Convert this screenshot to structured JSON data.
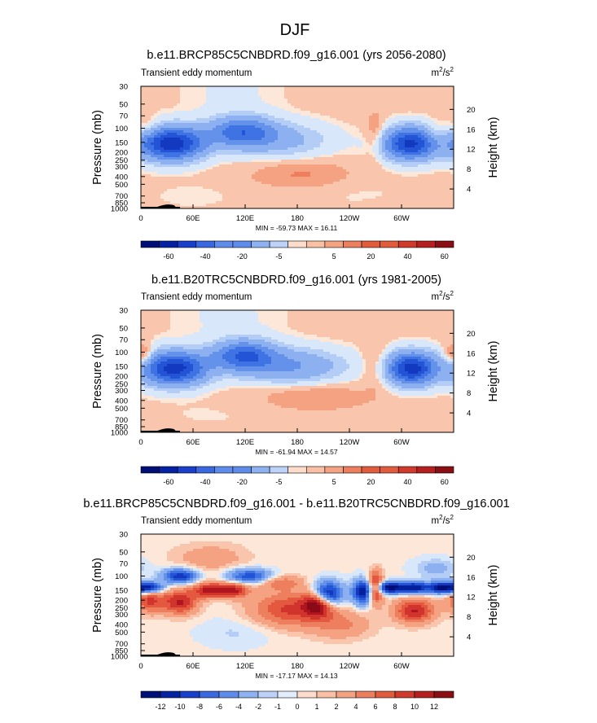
{
  "page_title": "DJF",
  "colors": {
    "positive": [
      "#fde7d9",
      "#f9c6ad",
      "#f4a282",
      "#ee7f5e",
      "#e3583f",
      "#d0342c",
      "#b0141f",
      "#8a0a18",
      "#650013"
    ],
    "negative": [
      "#d9e7fb",
      "#b4cdf6",
      "#8cb0f0",
      "#6491ea",
      "#3f72e3",
      "#2454d6",
      "#1239c0",
      "#05209c",
      "#000f78",
      "#000a5c"
    ],
    "bar_positive": [
      "#fddccb",
      "#f9c0a5",
      "#f4a282",
      "#ec7f5e",
      "#e15b3d",
      "#cf3a2c",
      "#b51f1f",
      "#8b0e14"
    ],
    "bar_negative": [
      "#000f78",
      "#0522a3",
      "#1a3fcb",
      "#3a68e0",
      "#5f8ceb",
      "#8eb1f2",
      "#bdd2f8",
      "#e1ecfc"
    ],
    "topography": "#000000"
  },
  "chart_data": [
    {
      "type": "heatmap",
      "title": "b.e11.BRCP85C5CNBDRD.f09_g16.001 (yrs 2056-2080)",
      "subtitle_left": "Transient eddy momentum",
      "units": {
        "base": "m",
        "sup1": "2",
        "mid": "/s",
        "sup2": "2"
      },
      "ylabel": "Pressure (mb)",
      "ylabel_right": "Height (km)",
      "pressure_ticks": [
        "30",
        "50",
        "70",
        "100",
        "150",
        "200",
        "250",
        "300",
        "400",
        "500",
        "700",
        "850",
        "1000"
      ],
      "height_ticks": [
        "20",
        "16",
        "12",
        "8",
        "4"
      ],
      "height_values_km": [
        20,
        16,
        12,
        8,
        4
      ],
      "lon_ticks": [
        "0",
        "60E",
        "120E",
        "180",
        "120W",
        "60W"
      ],
      "xlim_deg": [
        0,
        360
      ],
      "stats": "MIN = -59.73  MAX =  16.11",
      "colorbar_labels": [
        "-60",
        "-40",
        "-20",
        "-5",
        "5",
        "20",
        "40",
        "60"
      ],
      "colorbar_levels": [
        -70,
        -60,
        -50,
        -40,
        -30,
        -20,
        -10,
        -5,
        -1,
        1,
        5,
        10,
        20,
        30,
        40,
        50,
        60,
        70
      ],
      "contour_levels": [
        -60,
        -50,
        -40,
        -30,
        -20,
        -10,
        -5,
        -1,
        1,
        5,
        10,
        20,
        30,
        40,
        50,
        60
      ],
      "background_value": 2,
      "features": [
        {
          "lon": 35,
          "p": 155,
          "amp": -60,
          "wlon": 26,
          "wp": 0.33
        },
        {
          "lon": 115,
          "p": 110,
          "amp": -35,
          "wlon": 26,
          "wp": 0.3
        },
        {
          "lon": 160,
          "p": 140,
          "amp": -15,
          "wlon": 40,
          "wp": 0.35
        },
        {
          "lon": 310,
          "p": 155,
          "amp": -55,
          "wlon": 22,
          "wp": 0.32
        },
        {
          "lon": 8,
          "p": 100,
          "amp": 8,
          "wlon": 10,
          "wp": 0.2
        },
        {
          "lon": 270,
          "p": 120,
          "amp": 9,
          "wlon": 8,
          "wp": 0.45
        },
        {
          "lon": 185,
          "p": 380,
          "amp": 9,
          "wlon": 40,
          "wp": 0.28
        },
        {
          "lon": 105,
          "p": 35,
          "amp": -2.5,
          "wlon": 45,
          "wp": 0.6
        },
        {
          "lon": 60,
          "p": 700,
          "amp": -1.5,
          "wlon": 40,
          "wp": 0.3
        },
        {
          "lon": 240,
          "p": 600,
          "amp": -1.5,
          "wlon": 50,
          "wp": 0.35
        },
        {
          "lon": 340,
          "p": 120,
          "amp": 8,
          "wlon": 10,
          "wp": 0.25
        }
      ]
    },
    {
      "type": "heatmap",
      "title": "b.e11.B20TRC5CNBDRD.f09_g16.001 (yrs 1981-2005)",
      "subtitle_left": "Transient eddy momentum",
      "units": {
        "base": "m",
        "sup1": "2",
        "mid": "/s",
        "sup2": "2"
      },
      "ylabel": "Pressure (mb)",
      "ylabel_right": "Height (km)",
      "pressure_ticks": [
        "30",
        "50",
        "70",
        "100",
        "150",
        "200",
        "250",
        "300",
        "400",
        "500",
        "700",
        "850",
        "1000"
      ],
      "height_ticks": [
        "20",
        "16",
        "12",
        "8",
        "4"
      ],
      "height_values_km": [
        20,
        16,
        12,
        8,
        4
      ],
      "lon_ticks": [
        "0",
        "60E",
        "120E",
        "180",
        "120W",
        "60W"
      ],
      "xlim_deg": [
        0,
        360
      ],
      "stats": "MIN = -61.94  MAX =  14.57",
      "colorbar_labels": [
        "-60",
        "-40",
        "-20",
        "-5",
        "5",
        "20",
        "40",
        "60"
      ],
      "colorbar_levels": [
        -70,
        -60,
        -50,
        -40,
        -30,
        -20,
        -10,
        -5,
        -1,
        1,
        5,
        10,
        20,
        30,
        40,
        50,
        60,
        70
      ],
      "contour_levels": [
        -60,
        -50,
        -40,
        -30,
        -20,
        -10,
        -5,
        -1,
        1,
        5,
        10,
        20,
        30,
        40,
        50,
        60
      ],
      "background_value": 2,
      "features": [
        {
          "lon": 38,
          "p": 160,
          "amp": -58,
          "wlon": 26,
          "wp": 0.33
        },
        {
          "lon": 118,
          "p": 110,
          "amp": -40,
          "wlon": 25,
          "wp": 0.3
        },
        {
          "lon": 175,
          "p": 150,
          "amp": -22,
          "wlon": 42,
          "wp": 0.35
        },
        {
          "lon": 312,
          "p": 160,
          "amp": -58,
          "wlon": 20,
          "wp": 0.32
        },
        {
          "lon": 5,
          "p": 110,
          "amp": 9,
          "wlon": 8,
          "wp": 0.22
        },
        {
          "lon": 358,
          "p": 110,
          "amp": 9,
          "wlon": 8,
          "wp": 0.22
        },
        {
          "lon": 270,
          "p": 150,
          "amp": 7,
          "wlon": 10,
          "wp": 0.45
        },
        {
          "lon": 200,
          "p": 360,
          "amp": 8,
          "wlon": 45,
          "wp": 0.28
        },
        {
          "lon": 100,
          "p": 35,
          "amp": -2.5,
          "wlon": 50,
          "wp": 0.6
        },
        {
          "lon": 80,
          "p": 600,
          "amp": -1.2,
          "wlon": 50,
          "wp": 0.3
        }
      ]
    },
    {
      "type": "heatmap",
      "title": "b.e11.BRCP85C5CNBDRD.f09_g16.001 - b.e11.B20TRC5CNBDRD.f09_g16.001",
      "subtitle_left": "Transient eddy momentum",
      "units": {
        "base": "m",
        "sup1": "2",
        "mid": "/s",
        "sup2": "2"
      },
      "ylabel": "Pressure (mb)",
      "ylabel_right": "Height (km)",
      "pressure_ticks": [
        "30",
        "50",
        "70",
        "100",
        "150",
        "200",
        "250",
        "300",
        "400",
        "500",
        "700",
        "850",
        "1000"
      ],
      "height_ticks": [
        "20",
        "16",
        "12",
        "8",
        "4"
      ],
      "height_values_km": [
        20,
        16,
        12,
        8,
        4
      ],
      "lon_ticks": [
        "0",
        "60E",
        "120E",
        "180",
        "120W",
        "60W"
      ],
      "xlim_deg": [
        0,
        360
      ],
      "stats": "MIN = -17.17  MAX =  14.13",
      "colorbar_labels": [
        "-12",
        "-10",
        "-8",
        "-6",
        "-4",
        "-2",
        "-1",
        "0",
        "1",
        "2",
        "4",
        "6",
        "8",
        "10",
        "12"
      ],
      "colorbar_levels": [
        -14,
        -12,
        -10,
        -8,
        -6,
        -4,
        -2,
        -1,
        0,
        1,
        2,
        4,
        6,
        8,
        10,
        12,
        14
      ],
      "contour_levels": [
        -12,
        -10,
        -8,
        -6,
        -4,
        -2,
        -1,
        0,
        1,
        2,
        4,
        6,
        8,
        10,
        12
      ],
      "background_value": 0.3,
      "features": [
        {
          "lon": 8,
          "p": 140,
          "amp": -15,
          "wlon": 12,
          "wp": 0.12
        },
        {
          "lon": 45,
          "p": 100,
          "amp": -12,
          "wlon": 14,
          "wp": 0.15
        },
        {
          "lon": 125,
          "p": 100,
          "amp": -10,
          "wlon": 18,
          "wp": 0.15
        },
        {
          "lon": 215,
          "p": 170,
          "amp": -16,
          "wlon": 12,
          "wp": 0.25
        },
        {
          "lon": 255,
          "p": 160,
          "amp": -14,
          "wlon": 8,
          "wp": 0.25
        },
        {
          "lon": 285,
          "p": 140,
          "amp": -16,
          "wlon": 12,
          "wp": 0.12
        },
        {
          "lon": 315,
          "p": 140,
          "amp": -14,
          "wlon": 12,
          "wp": 0.12
        },
        {
          "lon": 345,
          "p": 140,
          "amp": -13,
          "wlon": 10,
          "wp": 0.12
        },
        {
          "lon": 10,
          "p": 200,
          "amp": 8,
          "wlon": 12,
          "wp": 0.25
        },
        {
          "lon": 45,
          "p": 210,
          "amp": 10,
          "wlon": 14,
          "wp": 0.25
        },
        {
          "lon": 80,
          "p": 150,
          "amp": 11,
          "wlon": 14,
          "wp": 0.15
        },
        {
          "lon": 108,
          "p": 150,
          "amp": 9,
          "wlon": 12,
          "wp": 0.15
        },
        {
          "lon": 170,
          "p": 260,
          "amp": 8,
          "wlon": 30,
          "wp": 0.35
        },
        {
          "lon": 205,
          "p": 220,
          "amp": 13,
          "wlon": 12,
          "wp": 0.25
        },
        {
          "lon": 270,
          "p": 140,
          "amp": 13,
          "wlon": 6,
          "wp": 0.3
        },
        {
          "lon": 315,
          "p": 270,
          "amp": 10,
          "wlon": 16,
          "wp": 0.25
        },
        {
          "lon": 160,
          "p": 120,
          "amp": 5,
          "wlon": 18,
          "wp": 0.15
        },
        {
          "lon": 80,
          "p": 60,
          "amp": 3,
          "wlon": 30,
          "wp": 0.3
        },
        {
          "lon": 230,
          "p": 400,
          "amp": 4,
          "wlon": 25,
          "wp": 0.3
        },
        {
          "lon": 340,
          "p": 80,
          "amp": -3,
          "wlon": 18,
          "wp": 0.2
        },
        {
          "lon": 110,
          "p": 500,
          "amp": -1.5,
          "wlon": 30,
          "wp": 0.3
        }
      ]
    }
  ]
}
